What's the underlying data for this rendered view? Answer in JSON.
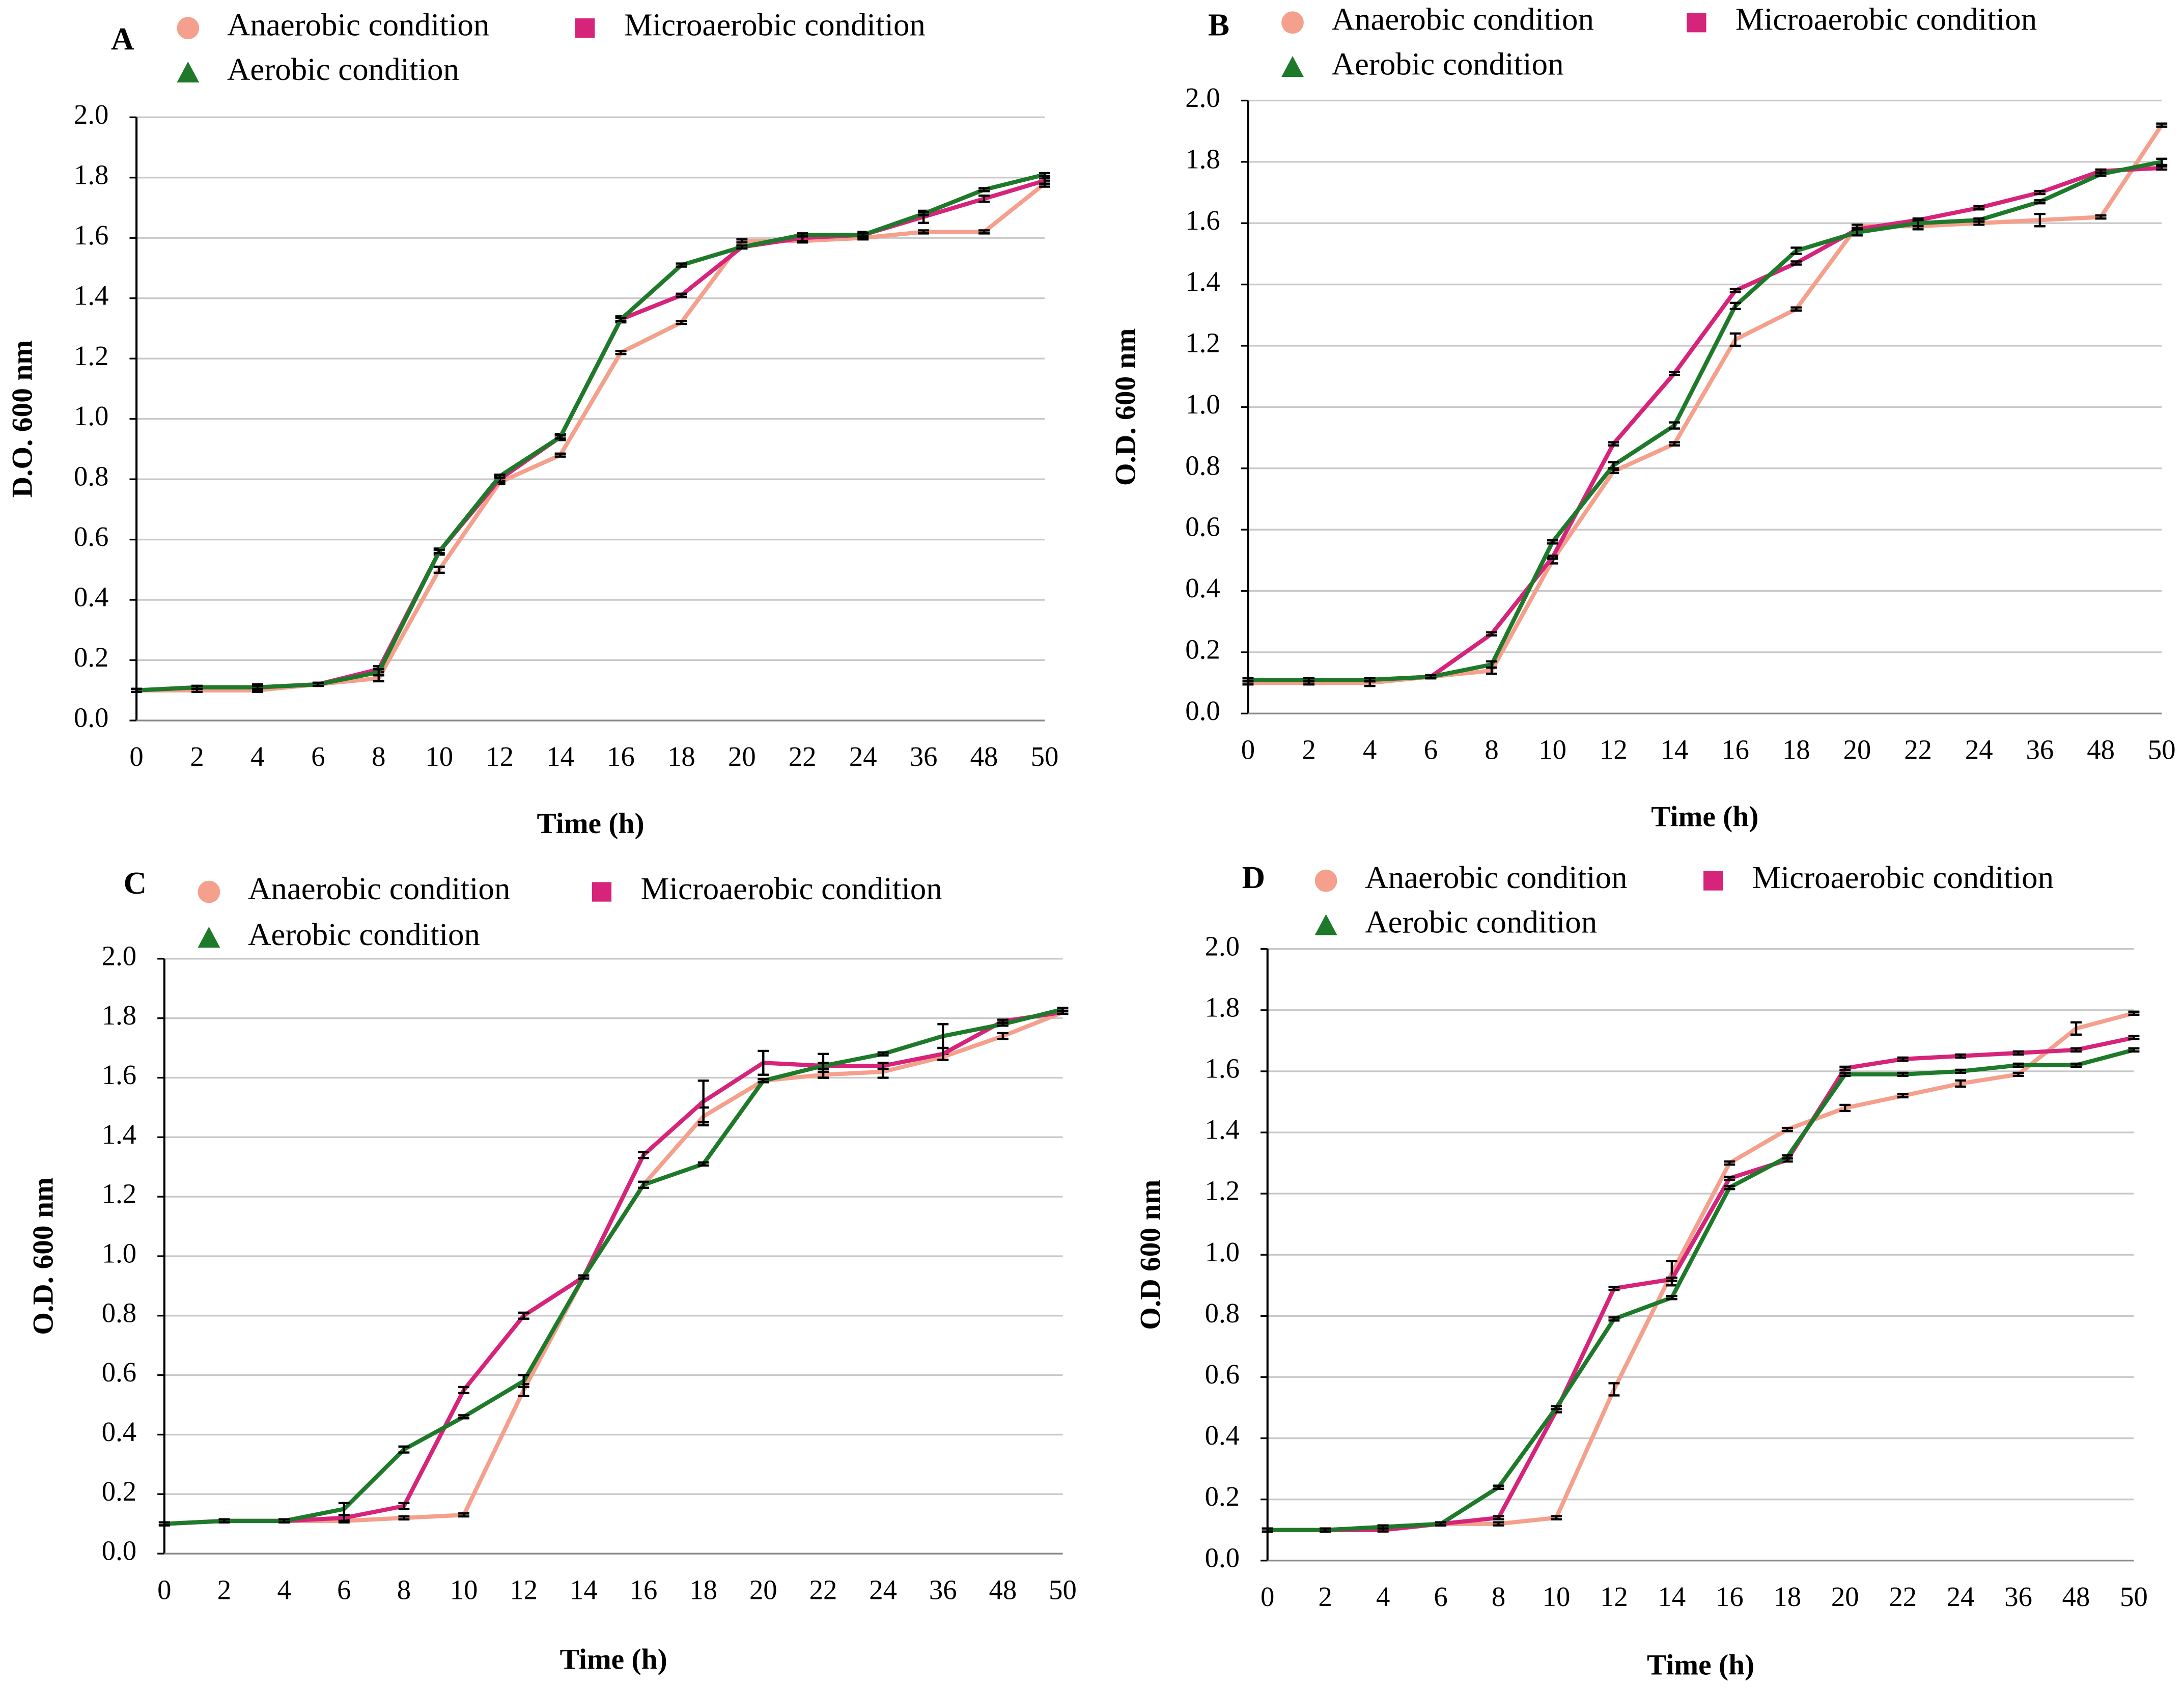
{
  "chart_data": [
    {
      "type": "line",
      "panel_label": "A",
      "ylabel": "D.O. 600 nm",
      "xlabel": "Time (h)",
      "categories": [
        "0",
        "2",
        "4",
        "6",
        "8",
        "10",
        "12",
        "14",
        "16",
        "18",
        "20",
        "22",
        "24",
        "36",
        "48",
        "50"
      ],
      "ylim": [
        0,
        2
      ],
      "yticks": [
        {
          "value": 0,
          "label": "0.0"
        },
        0.2,
        0.4,
        0.6,
        0.8,
        {
          "value": 1,
          "label": "1.0"
        },
        1.2,
        1.4,
        1.6,
        1.8,
        {
          "value": 2,
          "label": "2.0"
        }
      ],
      "grid": true,
      "series": [
        {
          "name": "Anaerobic condition",
          "color": "#f4a08c",
          "marker": "circle",
          "values": [
            0.1,
            0.1,
            0.1,
            0.12,
            0.14,
            0.5,
            0.79,
            0.88,
            1.22,
            1.32,
            1.59,
            1.59,
            1.6,
            1.62,
            1.62,
            1.78
          ],
          "errors": [
            0.005,
            0.005,
            0.005,
            0.005,
            0.01,
            0.01,
            0.005,
            0.005,
            0.005,
            0.005,
            0.005,
            0.005,
            0.005,
            0.005,
            0.005,
            0.01
          ]
        },
        {
          "name": "Microaerobic condition",
          "color": "#d6247a",
          "marker": "square",
          "values": [
            0.1,
            0.11,
            0.11,
            0.12,
            0.17,
            0.56,
            0.8,
            0.94,
            1.33,
            1.41,
            1.57,
            1.6,
            1.61,
            1.67,
            1.73,
            1.79
          ],
          "errors": [
            0.005,
            0.005,
            0.01,
            0.005,
            0.01,
            0.01,
            0.01,
            0.01,
            0.01,
            0.005,
            0.005,
            0.01,
            0.01,
            0.02,
            0.01,
            0.01
          ]
        },
        {
          "name": "Aerobic condition",
          "color": "#1e7a2a",
          "marker": "triangle",
          "values": [
            0.1,
            0.11,
            0.11,
            0.12,
            0.16,
            0.56,
            0.81,
            0.94,
            1.33,
            1.51,
            1.57,
            1.61,
            1.61,
            1.68,
            1.76,
            1.81
          ],
          "errors": [
            0.005,
            0.005,
            0.005,
            0.005,
            0.01,
            0.005,
            0.005,
            0.005,
            0.005,
            0.005,
            0.005,
            0.005,
            0.005,
            0.005,
            0.005,
            0.005
          ]
        }
      ]
    },
    {
      "type": "line",
      "panel_label": "B",
      "ylabel": "O.D. 600 nm",
      "xlabel": "Time (h)",
      "categories": [
        "0",
        "2",
        "4",
        "6",
        "8",
        "10",
        "12",
        "14",
        "16",
        "18",
        "20",
        "22",
        "24",
        "36",
        "48",
        "50"
      ],
      "ylim": [
        0,
        2
      ],
      "yticks": [
        {
          "value": 0,
          "label": "0.0"
        },
        0.2,
        0.4,
        0.6,
        0.8,
        {
          "value": 1,
          "label": "1.0"
        },
        1.2,
        1.4,
        1.6,
        1.8,
        {
          "value": 2,
          "label": "2.0"
        }
      ],
      "grid": true,
      "series": [
        {
          "name": "Anaerobic condition",
          "color": "#f4a08c",
          "marker": "circle",
          "values": [
            0.1,
            0.1,
            0.1,
            0.12,
            0.14,
            0.5,
            0.79,
            0.88,
            1.22,
            1.32,
            1.59,
            1.59,
            1.6,
            1.61,
            1.62,
            1.92
          ],
          "errors": [
            0.005,
            0.005,
            0.01,
            0.005,
            0.01,
            0.01,
            0.005,
            0.005,
            0.02,
            0.005,
            0.005,
            0.01,
            0.005,
            0.02,
            0.005,
            0.005
          ]
        },
        {
          "name": "Microaerobic condition",
          "color": "#d6247a",
          "marker": "square",
          "values": [
            0.11,
            0.11,
            0.11,
            0.12,
            0.26,
            0.51,
            0.88,
            1.11,
            1.38,
            1.47,
            1.58,
            1.61,
            1.65,
            1.7,
            1.77,
            1.78
          ],
          "errors": [
            0.005,
            0.005,
            0.005,
            0.005,
            0.005,
            0.005,
            0.005,
            0.005,
            0.005,
            0.005,
            0.005,
            0.005,
            0.005,
            0.005,
            0.005,
            0.005
          ]
        },
        {
          "name": "Aerobic condition",
          "color": "#1e7a2a",
          "marker": "triangle",
          "values": [
            0.11,
            0.11,
            0.11,
            0.12,
            0.16,
            0.56,
            0.81,
            0.94,
            1.33,
            1.51,
            1.57,
            1.6,
            1.61,
            1.67,
            1.76,
            1.8
          ],
          "errors": [
            0.005,
            0.005,
            0.005,
            0.005,
            0.01,
            0.005,
            0.01,
            0.01,
            0.01,
            0.01,
            0.01,
            0.01,
            0.005,
            0.005,
            0.005,
            0.01
          ]
        }
      ]
    },
    {
      "type": "line",
      "panel_label": "C",
      "ylabel": "O.D. 600 nm",
      "xlabel": "Time (h)",
      "categories": [
        "0",
        "2",
        "4",
        "6",
        "8",
        "10",
        "12",
        "14",
        "16",
        "18",
        "20",
        "22",
        "24",
        "36",
        "48",
        "50"
      ],
      "ylim": [
        0,
        2
      ],
      "yticks": [
        {
          "value": 0,
          "label": "0.0"
        },
        0.2,
        0.4,
        0.6,
        0.8,
        {
          "value": 1,
          "label": "1.0"
        },
        1.2,
        1.4,
        1.6,
        1.8,
        {
          "value": 2,
          "label": "2.0"
        }
      ],
      "grid": true,
      "series": [
        {
          "name": "Anaerobic condition",
          "color": "#f4a08c",
          "marker": "circle",
          "values": [
            0.1,
            0.11,
            0.11,
            0.11,
            0.12,
            0.13,
            0.55,
            0.93,
            1.24,
            1.47,
            1.59,
            1.61,
            1.62,
            1.67,
            1.74,
            1.82
          ],
          "errors": [
            0.005,
            0.005,
            0.005,
            0.005,
            0.005,
            0.005,
            0.02,
            0.005,
            0.01,
            0.03,
            0.005,
            0.01,
            0.02,
            0.01,
            0.01,
            0.005
          ]
        },
        {
          "name": "Microaerobic condition",
          "color": "#d6247a",
          "marker": "square",
          "values": [
            0.1,
            0.11,
            0.11,
            0.12,
            0.16,
            0.55,
            0.8,
            0.93,
            1.34,
            1.52,
            1.65,
            1.64,
            1.64,
            1.68,
            1.79,
            1.82
          ],
          "errors": [
            0.005,
            0.005,
            0.005,
            0.01,
            0.01,
            0.01,
            0.01,
            0.005,
            0.01,
            0.07,
            0.04,
            0.04,
            0.01,
            0.02,
            0.005,
            0.005
          ]
        },
        {
          "name": "Aerobic condition",
          "color": "#1e7a2a",
          "marker": "triangle",
          "values": [
            0.1,
            0.11,
            0.11,
            0.15,
            0.35,
            0.46,
            0.58,
            0.93,
            1.24,
            1.31,
            1.59,
            1.64,
            1.68,
            1.74,
            1.78,
            1.83
          ],
          "errors": [
            0.005,
            0.005,
            0.005,
            0.02,
            0.01,
            0.005,
            0.02,
            0.005,
            0.01,
            0.005,
            0.005,
            0.01,
            0.005,
            0.04,
            0.005,
            0.005
          ]
        }
      ]
    },
    {
      "type": "line",
      "panel_label": "D",
      "ylabel": "O.D 600 nm",
      "xlabel": "Time (h)",
      "categories": [
        "0",
        "2",
        "4",
        "6",
        "8",
        "10",
        "12",
        "14",
        "16",
        "18",
        "20",
        "22",
        "24",
        "36",
        "48",
        "50"
      ],
      "ylim": [
        0,
        2
      ],
      "yticks": [
        {
          "value": 0,
          "label": "0.0"
        },
        0.2,
        0.4,
        0.6,
        0.8,
        {
          "value": 1,
          "label": "1.0"
        },
        1.2,
        1.4,
        1.6,
        1.8,
        {
          "value": 2,
          "label": "2.0"
        }
      ],
      "grid": true,
      "series": [
        {
          "name": "Anaerobic condition",
          "color": "#f4a08c",
          "marker": "circle",
          "values": [
            0.1,
            0.1,
            0.11,
            0.12,
            0.12,
            0.14,
            0.56,
            0.94,
            1.3,
            1.41,
            1.48,
            1.52,
            1.56,
            1.59,
            1.74,
            1.79
          ],
          "errors": [
            0.005,
            0.005,
            0.005,
            0.005,
            0.005,
            0.005,
            0.02,
            0.04,
            0.005,
            0.005,
            0.01,
            0.005,
            0.01,
            0.005,
            0.02,
            0.005
          ]
        },
        {
          "name": "Microaerobic condition",
          "color": "#d6247a",
          "marker": "square",
          "values": [
            0.1,
            0.1,
            0.1,
            0.12,
            0.14,
            0.49,
            0.89,
            0.92,
            1.25,
            1.31,
            1.61,
            1.64,
            1.65,
            1.66,
            1.67,
            1.71
          ],
          "errors": [
            0.005,
            0.005,
            0.005,
            0.005,
            0.005,
            0.005,
            0.005,
            0.005,
            0.005,
            0.005,
            0.005,
            0.005,
            0.005,
            0.005,
            0.005,
            0.005
          ]
        },
        {
          "name": "Aerobic condition",
          "color": "#1e7a2a",
          "marker": "triangle",
          "values": [
            0.1,
            0.1,
            0.11,
            0.12,
            0.24,
            0.5,
            0.79,
            0.86,
            1.22,
            1.32,
            1.59,
            1.59,
            1.6,
            1.62,
            1.62,
            1.67
          ],
          "errors": [
            0.005,
            0.005,
            0.005,
            0.005,
            0.005,
            0.005,
            0.005,
            0.005,
            0.005,
            0.005,
            0.005,
            0.005,
            0.005,
            0.005,
            0.005,
            0.005
          ]
        }
      ]
    }
  ]
}
